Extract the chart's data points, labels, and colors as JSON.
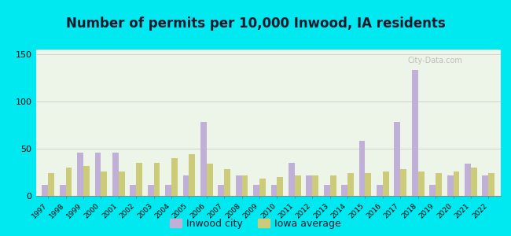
{
  "title": "Number of permits per 10,000 Inwood, IA residents",
  "years": [
    1997,
    1998,
    1999,
    2000,
    2001,
    2002,
    2003,
    2004,
    2005,
    2006,
    2007,
    2008,
    2009,
    2010,
    2011,
    2012,
    2013,
    2014,
    2015,
    2016,
    2017,
    2018,
    2019,
    2020,
    2021,
    2022
  ],
  "inwood_values": [
    12,
    12,
    46,
    46,
    46,
    12,
    12,
    12,
    22,
    78,
    12,
    22,
    12,
    12,
    35,
    22,
    12,
    12,
    58,
    12,
    78,
    133,
    12,
    22,
    34,
    22
  ],
  "iowa_values": [
    24,
    30,
    32,
    26,
    26,
    35,
    35,
    40,
    44,
    34,
    28,
    22,
    18,
    20,
    22,
    22,
    22,
    24,
    24,
    26,
    28,
    26,
    24,
    26,
    30,
    24
  ],
  "inwood_color": "#c0b0d8",
  "iowa_color": "#cccb7a",
  "ylim": [
    0,
    155
  ],
  "yticks": [
    0,
    50,
    100,
    150
  ],
  "plot_bg": "#edf5e8",
  "outer_bg": "#00e8f0",
  "title_fontsize": 12,
  "title_color": "#1a1a2e",
  "legend_labels": [
    "Inwood city",
    "Iowa average"
  ]
}
